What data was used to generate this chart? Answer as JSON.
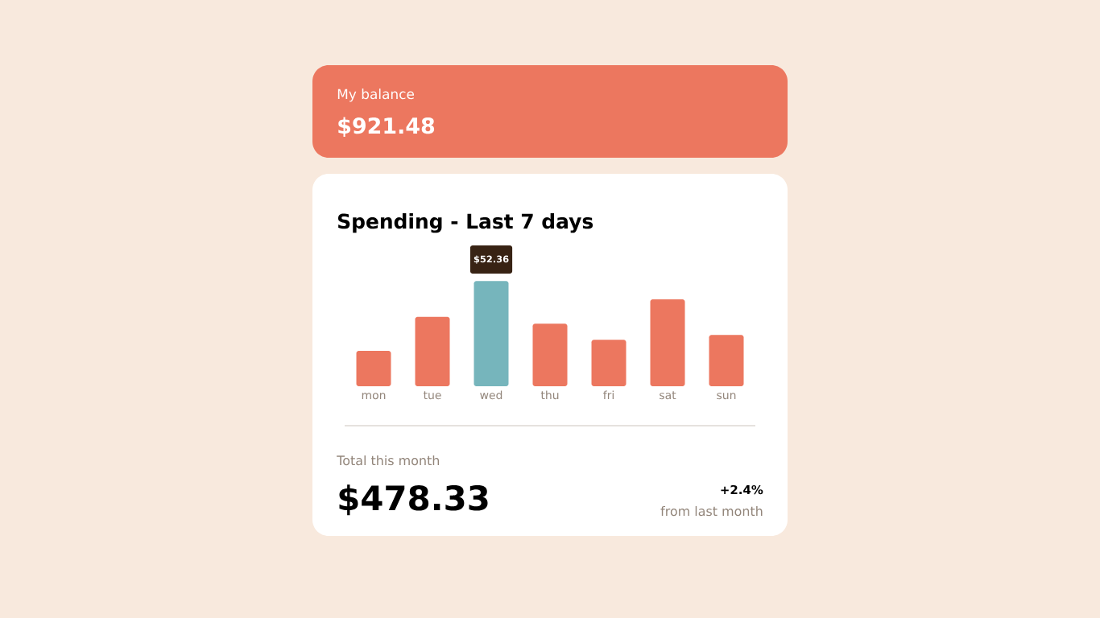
{
  "chart_data": {
    "type": "bar",
    "title": "Spending - Last 7 days",
    "categories": [
      "mon",
      "tue",
      "wed",
      "thu",
      "fri",
      "sat",
      "sun"
    ],
    "values": [
      17.6,
      34.6,
      52.36,
      31.1,
      23.1,
      43.3,
      25.5
    ],
    "colors": [
      "#ec775f",
      "#ec775f",
      "#76b5bc",
      "#ec775f",
      "#ec775f",
      "#ec775f",
      "#ec775f"
    ],
    "tick_labels": "x",
    "value_labels": [
      null,
      null,
      "$52.36",
      null,
      null,
      null,
      null
    ],
    "annotations": [
      "My balance",
      "$921.48",
      "Total this month",
      "$478.33",
      "+2.4%",
      "from last month"
    ]
  }
}
